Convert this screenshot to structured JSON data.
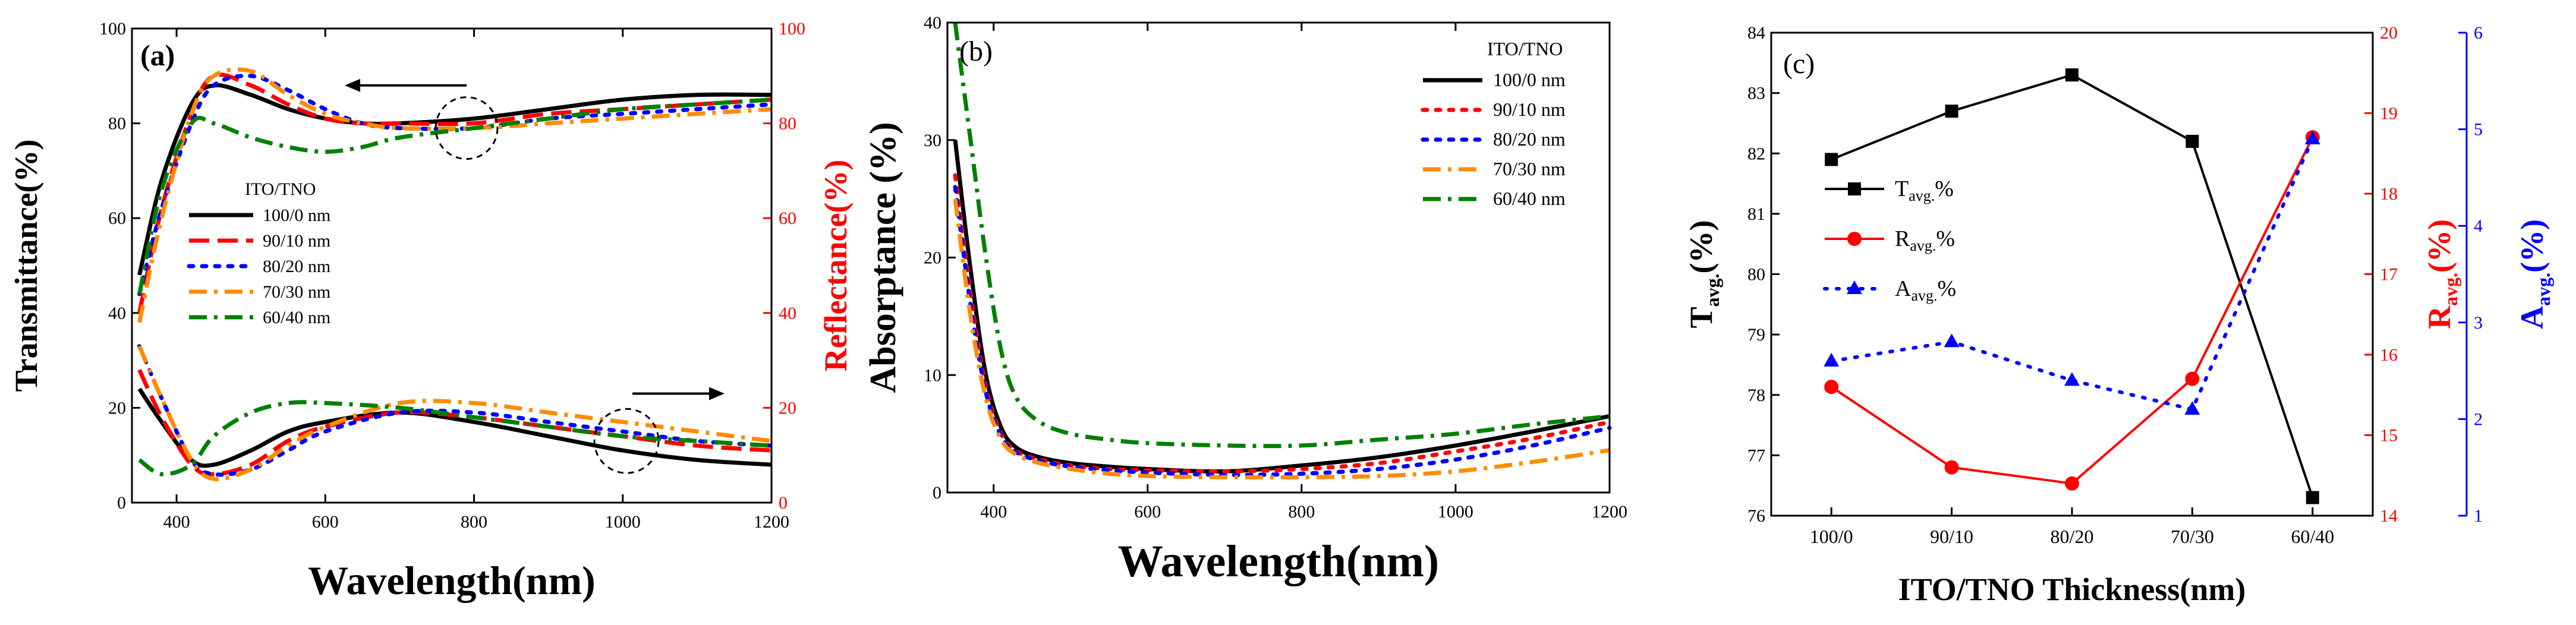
{
  "figure": "Three-panel optical characterization of ITO/TNO films",
  "chart_data": [
    {
      "type": "line",
      "panel_label": "(a)",
      "xlabel": "Wavelength(nm)",
      "ylabel_left": "Transmittance(%)",
      "ylabel_right": "Reflectance(%)",
      "xlim": [
        340,
        1200
      ],
      "ylim_left": [
        0,
        100
      ],
      "ylim_right": [
        0,
        100
      ],
      "x_ticks": [
        400,
        600,
        800,
        1000,
        1200
      ],
      "y_ticks_left": [
        0,
        20,
        40,
        60,
        80,
        100
      ],
      "y_ticks_right": [
        0,
        20,
        40,
        60,
        80,
        100
      ],
      "legend_title": "ITO/TNO",
      "legend_position": "center-left",
      "annotations": [
        "dashed circle with arrow pointing left at transmittance curves (~790 nm)",
        "dashed circle with arrow pointing right at reflectance curves (~1000 nm)"
      ],
      "series": [
        {
          "name": "100/0 nm",
          "color": "#000000",
          "dash": "solid",
          "axis": "left",
          "x": [
            350,
            380,
            420,
            450,
            500,
            550,
            600,
            650,
            700,
            800,
            900,
            1000,
            1100,
            1200
          ],
          "values": [
            48,
            68,
            84,
            88,
            86,
            83,
            81,
            80,
            80,
            81,
            83,
            85,
            86,
            86
          ]
        },
        {
          "name": "90/10 nm",
          "color": "#ff0000",
          "dash": "dash",
          "axis": "left",
          "x": [
            350,
            380,
            420,
            450,
            500,
            550,
            600,
            650,
            700,
            800,
            900,
            1000,
            1100,
            1200
          ],
          "values": [
            40,
            62,
            82,
            90,
            88,
            84,
            81,
            80,
            80,
            80,
            82,
            83,
            84,
            85
          ]
        },
        {
          "name": "80/20 nm",
          "color": "#0000ff",
          "dash": "dot",
          "axis": "left",
          "x": [
            350,
            380,
            420,
            450,
            500,
            550,
            600,
            650,
            700,
            800,
            900,
            1000,
            1100,
            1200
          ],
          "values": [
            44,
            62,
            80,
            88,
            90,
            87,
            83,
            80,
            79,
            79,
            81,
            82,
            83,
            84
          ]
        },
        {
          "name": "70/30 nm",
          "color": "#ff8c00",
          "dash": "dashdot",
          "axis": "left",
          "x": [
            350,
            380,
            420,
            450,
            500,
            550,
            600,
            650,
            700,
            800,
            900,
            1000,
            1100,
            1200
          ],
          "values": [
            38,
            60,
            82,
            90,
            91,
            86,
            82,
            80,
            79,
            79,
            80,
            81,
            82,
            83
          ]
        },
        {
          "name": "60/40 nm",
          "color": "#008000",
          "dash": "dashdot",
          "axis": "left",
          "x": [
            350,
            380,
            420,
            450,
            500,
            550,
            600,
            650,
            700,
            800,
            900,
            1000,
            1100,
            1200
          ],
          "values": [
            44,
            66,
            80,
            80,
            77,
            75,
            74,
            75,
            77,
            79,
            81,
            83,
            84,
            85
          ]
        },
        {
          "name": "100/0 nm R",
          "color": "#000000",
          "dash": "solid",
          "axis": "right",
          "x": [
            350,
            380,
            420,
            450,
            500,
            550,
            600,
            700,
            800,
            900,
            1000,
            1100,
            1200
          ],
          "values": [
            24,
            17,
            9,
            8,
            11,
            15,
            17,
            19,
            17,
            14,
            11,
            9,
            8
          ]
        },
        {
          "name": "90/10 nm R",
          "color": "#ff0000",
          "dash": "dash",
          "axis": "right",
          "x": [
            350,
            380,
            420,
            450,
            500,
            550,
            600,
            700,
            800,
            900,
            1000,
            1100,
            1200
          ],
          "values": [
            28,
            18,
            8,
            6,
            8,
            13,
            16,
            19,
            18,
            16,
            14,
            12,
            11
          ]
        },
        {
          "name": "80/20 nm R",
          "color": "#0000ff",
          "dash": "dot",
          "axis": "right",
          "x": [
            350,
            380,
            420,
            450,
            500,
            550,
            600,
            700,
            800,
            900,
            1000,
            1100,
            1200
          ],
          "values": [
            33,
            22,
            9,
            6,
            7,
            11,
            15,
            19,
            19,
            17,
            15,
            13,
            12
          ]
        },
        {
          "name": "70/30 nm R",
          "color": "#ff8c00",
          "dash": "dashdot",
          "axis": "right",
          "x": [
            350,
            380,
            420,
            450,
            500,
            550,
            600,
            700,
            800,
            900,
            1000,
            1100,
            1200
          ],
          "values": [
            33,
            22,
            9,
            5,
            7,
            12,
            16,
            21,
            21,
            19,
            17,
            15,
            13
          ]
        },
        {
          "name": "60/40 nm R",
          "color": "#008000",
          "dash": "dashdot",
          "axis": "right",
          "x": [
            350,
            380,
            420,
            450,
            500,
            550,
            600,
            700,
            800,
            900,
            1000,
            1100,
            1200
          ],
          "values": [
            9,
            6,
            8,
            14,
            19,
            21,
            21,
            20,
            18,
            16,
            14,
            13,
            12
          ]
        }
      ]
    },
    {
      "type": "line",
      "panel_label": "(b)",
      "xlabel": "Wavelength(nm)",
      "ylabel": "Absorptance (%)",
      "xlim": [
        340,
        1200
      ],
      "ylim": [
        0,
        40
      ],
      "x_ticks": [
        400,
        600,
        800,
        1000,
        1200
      ],
      "y_ticks": [
        0,
        10,
        20,
        30,
        40
      ],
      "legend_title": "ITO/TNO",
      "legend_position": "top-right",
      "series": [
        {
          "name": "100/0 nm",
          "color": "#000000",
          "dash": "solid",
          "x": [
            350,
            370,
            390,
            410,
            430,
            460,
            500,
            550,
            600,
            700,
            800,
            900,
            1000,
            1100,
            1200
          ],
          "values": [
            30,
            19,
            10,
            5.5,
            3.8,
            3,
            2.5,
            2.2,
            2,
            1.8,
            2.3,
            3,
            4,
            5.2,
            6.5
          ]
        },
        {
          "name": "90/10 nm",
          "color": "#ff0000",
          "dash": "dot",
          "x": [
            350,
            370,
            390,
            410,
            430,
            460,
            500,
            550,
            600,
            700,
            800,
            900,
            1000,
            1100,
            1200
          ],
          "values": [
            27,
            17,
            9,
            5,
            3.5,
            2.8,
            2.3,
            2,
            1.9,
            1.8,
            2,
            2.5,
            3.5,
            4.6,
            6
          ]
        },
        {
          "name": "80/20 nm",
          "color": "#0000ff",
          "dash": "dot",
          "x": [
            350,
            370,
            390,
            410,
            430,
            460,
            500,
            550,
            600,
            700,
            800,
            900,
            1000,
            1100,
            1200
          ],
          "values": [
            26,
            16,
            8.5,
            4.8,
            3.4,
            2.7,
            2.2,
            1.9,
            1.7,
            1.5,
            1.6,
            2,
            2.8,
            4,
            5.5
          ]
        },
        {
          "name": "70/30 nm",
          "color": "#ff8c00",
          "dash": "dashdot",
          "x": [
            350,
            370,
            390,
            410,
            430,
            460,
            500,
            550,
            600,
            700,
            800,
            900,
            1000,
            1100,
            1200
          ],
          "values": [
            25,
            15,
            8,
            4.5,
            3.2,
            2.5,
            2,
            1.6,
            1.4,
            1.3,
            1.3,
            1.4,
            1.8,
            2.6,
            3.6
          ]
        },
        {
          "name": "60/40 nm",
          "color": "#008000",
          "dash": "dashdot",
          "x": [
            350,
            370,
            390,
            410,
            430,
            460,
            500,
            550,
            600,
            700,
            800,
            900,
            1000,
            1100,
            1200
          ],
          "values": [
            40,
            30,
            20,
            12,
            8,
            6,
            5,
            4.5,
            4.2,
            4,
            4,
            4.5,
            5,
            5.8,
            6.5
          ]
        }
      ]
    },
    {
      "type": "line",
      "panel_label": "(c)",
      "xlabel": "ITO/TNO Thickness(nm)",
      "categories": [
        "100/0",
        "90/10",
        "80/20",
        "70/30",
        "60/40"
      ],
      "ylabel_left": "T",
      "ylabel_left_sub": "avg.",
      "ylabel_left_suffix": "(%)",
      "ylabel_right1": "R",
      "ylabel_right1_sub": "avg.",
      "ylabel_right1_suffix": "(%)",
      "ylabel_right2": "A",
      "ylabel_right2_sub": "avg.",
      "ylabel_right2_suffix": "(%)",
      "ylim_left": [
        76,
        84
      ],
      "ylim_right1": [
        14,
        20
      ],
      "ylim_right2": [
        1,
        6
      ],
      "y_ticks_left": [
        76,
        77,
        78,
        79,
        80,
        81,
        82,
        83,
        84
      ],
      "y_ticks_right1": [
        14,
        15,
        16,
        17,
        18,
        19,
        20
      ],
      "y_ticks_right2": [
        1,
        2,
        3,
        4,
        5,
        6
      ],
      "legend_position": "center-left",
      "series": [
        {
          "name": "T",
          "name_sub": "avg.",
          "name_suffix": "%",
          "color": "#000000",
          "marker": "square",
          "dash": "solid",
          "axis": "left",
          "values": [
            81.9,
            82.7,
            83.3,
            82.2,
            76.3
          ]
        },
        {
          "name": "R",
          "name_sub": "avg.",
          "name_suffix": "%",
          "color": "#ff0000",
          "marker": "circle",
          "dash": "solid",
          "axis": "right1",
          "values": [
            15.6,
            14.6,
            14.4,
            15.7,
            18.7
          ]
        },
        {
          "name": "A",
          "name_sub": "avg.",
          "name_suffix": "%",
          "color": "#0000ff",
          "marker": "triangle",
          "dash": "dot",
          "axis": "right2",
          "values": [
            2.6,
            2.8,
            2.4,
            2.1,
            4.9
          ]
        }
      ]
    }
  ]
}
